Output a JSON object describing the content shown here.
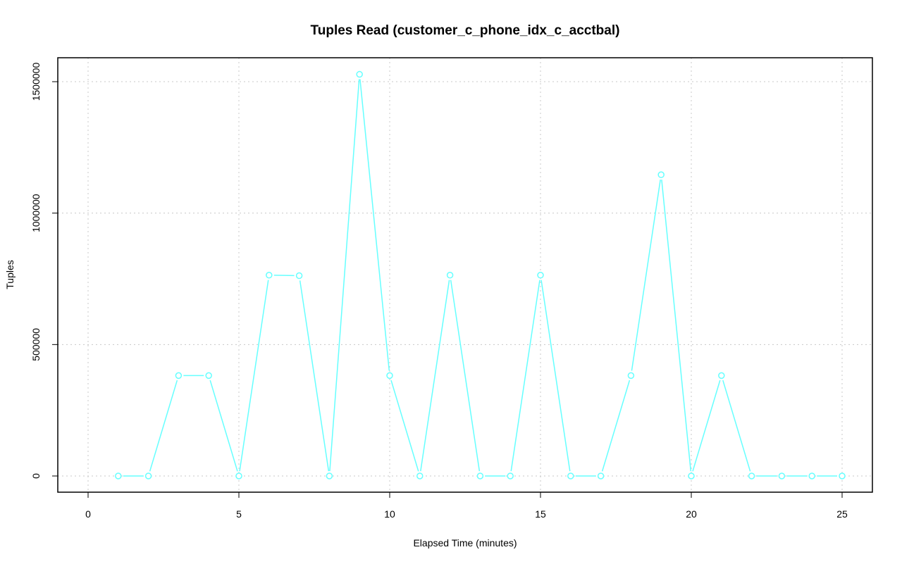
{
  "chart_data": {
    "type": "line",
    "title": "Tuples Read (customer_c_phone_idx_c_acctbal)",
    "xlabel": "Elapsed Time (minutes)",
    "ylabel": "Tuples",
    "xlim": [
      0,
      25
    ],
    "ylim": [
      0,
      1530000
    ],
    "xticks": [
      0,
      5,
      10,
      15,
      20,
      25
    ],
    "yticks": [
      0,
      500000,
      1000000,
      1500000
    ],
    "xtick_labels": [
      "0",
      "5",
      "10",
      "15",
      "20",
      "25"
    ],
    "ytick_labels": [
      "0",
      "500000",
      "1000000",
      "1500000"
    ],
    "grid": true,
    "color": "#66ffff",
    "x": [
      1,
      2,
      3,
      4,
      5,
      6,
      7,
      8,
      9,
      10,
      11,
      12,
      13,
      14,
      15,
      16,
      17,
      18,
      19,
      20,
      21,
      22,
      23,
      24,
      25
    ],
    "values": [
      0,
      0,
      382000,
      382000,
      0,
      764000,
      762000,
      0,
      1528000,
      382000,
      0,
      764000,
      0,
      0,
      764000,
      0,
      0,
      382000,
      1146000,
      0,
      382000,
      0,
      0,
      0,
      0
    ]
  }
}
